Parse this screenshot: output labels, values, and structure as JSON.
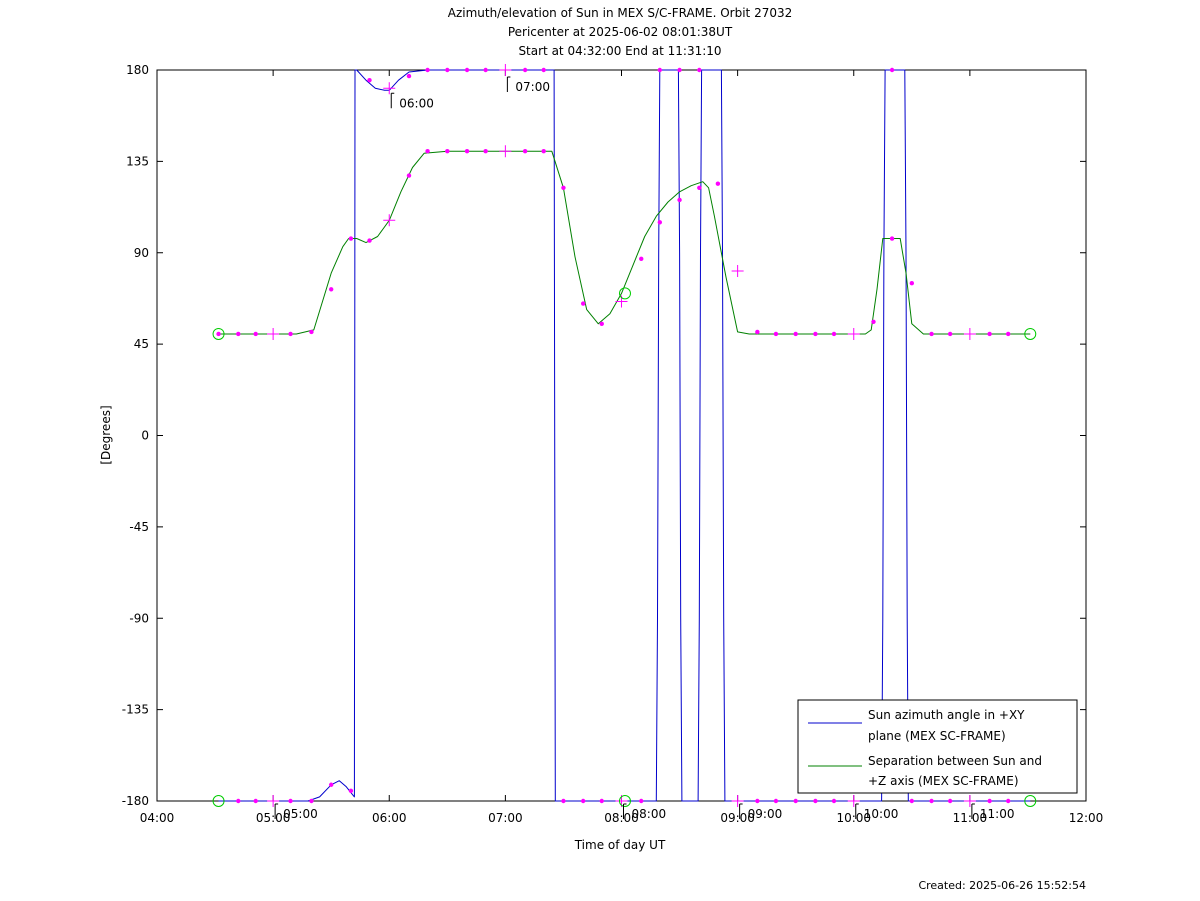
{
  "chart_data": {
    "type": "line",
    "title": [
      "Azimuth/elevation of Sun in MEX S/C-FRAME.  Orbit 27032",
      "Pericenter at 2025-06-02 08:01:38UT",
      "Start at 04:32:00 End at 11:31:10"
    ],
    "xlabel": "Time of day UT",
    "ylabel": "[Degrees]",
    "xlim": [
      4.0,
      12.0
    ],
    "ylim": [
      -180,
      180
    ],
    "x_ticks": [
      4,
      5,
      6,
      7,
      8,
      9,
      10,
      11,
      12
    ],
    "x_tick_labels": [
      "04:00",
      "05:00",
      "06:00",
      "07:00",
      "08:00",
      "09:00",
      "10:00",
      "11:00",
      "12:00"
    ],
    "y_ticks": [
      180,
      135,
      90,
      45,
      0,
      -45,
      -90,
      -135,
      -180
    ],
    "y_tick_labels": [
      "180",
      "135",
      "90",
      "45",
      "0",
      "-45",
      "-90",
      "-135",
      "-180"
    ],
    "hour_annotations": [
      {
        "x": 5.0,
        "y": -180,
        "label": "05:00"
      },
      {
        "x": 6.0,
        "y": 170,
        "label": "06:00"
      },
      {
        "x": 7.0,
        "y": 178,
        "label": "07:00"
      },
      {
        "x": 8.0,
        "y": -180,
        "label": "08:00"
      },
      {
        "x": 9.0,
        "y": -180,
        "label": "09:00"
      },
      {
        "x": 10.0,
        "y": -180,
        "label": "10:00"
      },
      {
        "x": 11.0,
        "y": -180,
        "label": "11:00"
      }
    ],
    "legend": {
      "placement": "bottom-right",
      "entries": [
        "Sun azimuth angle in +XY plane (MEX SC-FRAME)",
        "Separation between Sun and +Z axis (MEX SC-FRAME)"
      ]
    },
    "legend_lines": [
      [
        "Sun azimuth angle in +XY",
        "plane (MEX SC-FRAME)"
      ],
      [
        "Separation between Sun and",
        "+Z axis (MEX SC-FRAME)"
      ]
    ],
    "series": [
      {
        "name": "Sun azimuth angle in +XY plane (MEX SC-FRAME)",
        "color": "#0000cc",
        "x": [
          4.53,
          5.0,
          5.3,
          5.4,
          5.5,
          5.57,
          5.63,
          5.7,
          5.705,
          5.72,
          5.8,
          5.88,
          5.96,
          6.0,
          6.08,
          6.17,
          6.33,
          6.5,
          7.0,
          7.38,
          7.42,
          7.43,
          7.5,
          7.9,
          8.3,
          8.31,
          8.32,
          8.33,
          8.34,
          8.49,
          8.5,
          8.51,
          8.52,
          8.53,
          8.66,
          8.67,
          8.68,
          8.69,
          8.7,
          8.86,
          8.87,
          8.88,
          8.89,
          8.9,
          9.0,
          9.5,
          10.0,
          10.2,
          10.24,
          10.25,
          10.26,
          10.27,
          10.44,
          10.45,
          10.46,
          10.47,
          10.48,
          11.0,
          11.52
        ],
        "y": [
          -180,
          -180,
          -180,
          -178,
          -172,
          -170,
          -173,
          -178,
          180,
          180,
          175,
          171,
          170,
          170,
          175,
          179,
          180,
          180,
          180,
          180,
          180,
          -180,
          -180,
          -180,
          -180,
          -90,
          90,
          180,
          180,
          180,
          90,
          -90,
          -180,
          -180,
          -180,
          -90,
          90,
          180,
          180,
          180,
          90,
          -90,
          -180,
          -180,
          -180,
          -180,
          -180,
          -180,
          -180,
          -90,
          90,
          180,
          180,
          90,
          -90,
          -180,
          -180,
          -180,
          -180
        ]
      },
      {
        "name": "Separation between Sun and +Z axis (MEX SC-FRAME)",
        "color": "#008000",
        "x": [
          4.53,
          5.0,
          5.2,
          5.35,
          5.5,
          5.6,
          5.65,
          5.72,
          5.8,
          5.9,
          6.0,
          6.1,
          6.2,
          6.3,
          6.5,
          7.0,
          7.4,
          7.5,
          7.6,
          7.7,
          7.8,
          7.9,
          8.0,
          8.1,
          8.2,
          8.3,
          8.4,
          8.5,
          8.6,
          8.7,
          8.75,
          8.8,
          8.9,
          9.0,
          9.1,
          9.5,
          10.0,
          10.1,
          10.15,
          10.2,
          10.25,
          10.35,
          10.4,
          10.45,
          10.5,
          10.6,
          11.0,
          11.52
        ],
        "y": [
          50,
          50,
          50,
          52,
          80,
          93,
          97,
          97,
          95,
          98,
          106,
          120,
          132,
          139,
          140,
          140,
          140,
          122,
          88,
          62,
          55,
          60,
          70,
          84,
          98,
          108,
          115,
          120,
          123,
          125,
          122,
          108,
          78,
          51,
          50,
          50,
          50,
          50,
          52,
          72,
          97,
          97,
          97,
          80,
          55,
          50,
          50,
          50
        ]
      }
    ],
    "markers": {
      "small_dots": [
        {
          "x": 4.53,
          "y": 50
        },
        {
          "x": 4.7,
          "y": 50
        },
        {
          "x": 4.85,
          "y": 50
        },
        {
          "x": 5.15,
          "y": 50
        },
        {
          "x": 5.33,
          "y": 51
        },
        {
          "x": 5.5,
          "y": 72
        },
        {
          "x": 5.67,
          "y": 97
        },
        {
          "x": 5.83,
          "y": 96
        },
        {
          "x": 6.17,
          "y": 128
        },
        {
          "x": 6.33,
          "y": 140
        },
        {
          "x": 6.5,
          "y": 140
        },
        {
          "x": 6.67,
          "y": 140
        },
        {
          "x": 6.83,
          "y": 140
        },
        {
          "x": 7.17,
          "y": 140
        },
        {
          "x": 7.33,
          "y": 140
        },
        {
          "x": 7.5,
          "y": 122
        },
        {
          "x": 7.67,
          "y": 65
        },
        {
          "x": 7.83,
          "y": 55
        },
        {
          "x": 8.17,
          "y": 87
        },
        {
          "x": 8.33,
          "y": 105
        },
        {
          "x": 8.5,
          "y": 116
        },
        {
          "x": 8.67,
          "y": 122
        },
        {
          "x": 8.83,
          "y": 124
        },
        {
          "x": 9.17,
          "y": 51
        },
        {
          "x": 9.33,
          "y": 50
        },
        {
          "x": 9.5,
          "y": 50
        },
        {
          "x": 9.67,
          "y": 50
        },
        {
          "x": 9.83,
          "y": 50
        },
        {
          "x": 10.17,
          "y": 56
        },
        {
          "x": 10.33,
          "y": 97
        },
        {
          "x": 10.5,
          "y": 75
        },
        {
          "x": 10.67,
          "y": 50
        },
        {
          "x": 10.83,
          "y": 50
        },
        {
          "x": 11.17,
          "y": 50
        },
        {
          "x": 11.33,
          "y": 50
        },
        {
          "x": 4.7,
          "y": -180
        },
        {
          "x": 4.85,
          "y": -180
        },
        {
          "x": 5.15,
          "y": -180
        },
        {
          "x": 5.33,
          "y": -180
        },
        {
          "x": 5.5,
          "y": -172
        },
        {
          "x": 5.67,
          "y": -175
        },
        {
          "x": 5.83,
          "y": 175
        },
        {
          "x": 6.17,
          "y": 177
        },
        {
          "x": 6.33,
          "y": 180
        },
        {
          "x": 6.5,
          "y": 180
        },
        {
          "x": 6.67,
          "y": 180
        },
        {
          "x": 6.83,
          "y": 180
        },
        {
          "x": 7.17,
          "y": 180
        },
        {
          "x": 7.33,
          "y": 180
        },
        {
          "x": 7.5,
          "y": -180
        },
        {
          "x": 7.67,
          "y": -180
        },
        {
          "x": 7.83,
          "y": -180
        },
        {
          "x": 8.17,
          "y": -180
        },
        {
          "x": 8.33,
          "y": 180
        },
        {
          "x": 8.5,
          "y": 180
        },
        {
          "x": 8.67,
          "y": 180
        },
        {
          "x": 9.17,
          "y": -180
        },
        {
          "x": 9.33,
          "y": -180
        },
        {
          "x": 9.5,
          "y": -180
        },
        {
          "x": 9.67,
          "y": -180
        },
        {
          "x": 9.83,
          "y": -180
        },
        {
          "x": 10.33,
          "y": 180
        },
        {
          "x": 10.5,
          "y": -180
        },
        {
          "x": 10.67,
          "y": -180
        },
        {
          "x": 10.83,
          "y": -180
        },
        {
          "x": 11.17,
          "y": -180
        },
        {
          "x": 11.33,
          "y": -180
        }
      ],
      "plus_markers": [
        {
          "x": 5.0,
          "y": 50
        },
        {
          "x": 6.0,
          "y": 106
        },
        {
          "x": 7.0,
          "y": 140
        },
        {
          "x": 8.0,
          "y": 66
        },
        {
          "x": 9.0,
          "y": 81
        },
        {
          "x": 10.0,
          "y": 50
        },
        {
          "x": 11.0,
          "y": 50
        },
        {
          "x": 5.0,
          "y": -180
        },
        {
          "x": 6.0,
          "y": 171
        },
        {
          "x": 7.0,
          "y": 180
        },
        {
          "x": 8.0,
          "y": -180
        },
        {
          "x": 9.0,
          "y": -180
        },
        {
          "x": 10.0,
          "y": -180
        },
        {
          "x": 11.0,
          "y": -180
        }
      ],
      "circles": [
        {
          "x": 4.53,
          "y": 50
        },
        {
          "x": 11.52,
          "y": 50
        },
        {
          "x": 4.53,
          "y": -180
        },
        {
          "x": 11.52,
          "y": -180
        },
        {
          "x": 8.03,
          "y": 70
        },
        {
          "x": 8.03,
          "y": -180
        }
      ]
    },
    "grid": false
  },
  "footer": {
    "created": "Created: 2025-06-26 15:52:54"
  }
}
